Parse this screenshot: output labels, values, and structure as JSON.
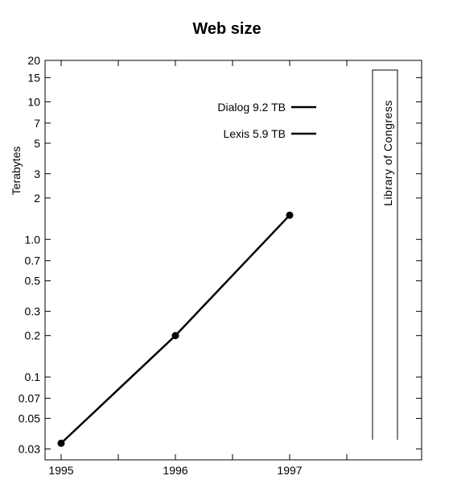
{
  "chart_data": {
    "type": "line",
    "title": "Web size",
    "xlabel": "",
    "ylabel": "Terabytes",
    "yscale": "log",
    "ylim": [
      0.025,
      20
    ],
    "xlim": [
      1995,
      1997.5
    ],
    "x_ticks": [
      1995,
      1996,
      1997
    ],
    "x_tick_labels": [
      "1995",
      "1996",
      "1997"
    ],
    "y_ticks": [
      0.03,
      0.05,
      0.07,
      0.1,
      0.2,
      0.3,
      0.5,
      0.7,
      1.0,
      2,
      3,
      5,
      7,
      10,
      15,
      20
    ],
    "y_tick_labels": [
      "0.03",
      "0.05",
      "0.07",
      "0.1",
      "0.2",
      "0.3",
      "0.5",
      "0.7",
      "1.0",
      "2",
      "3",
      "5",
      "7",
      "10",
      "15",
      "20"
    ],
    "grid": false,
    "series": [
      {
        "x": [
          1995,
          1996,
          1997
        ],
        "values": [
          0.033,
          0.2,
          1.5
        ],
        "color": "#000000"
      }
    ],
    "legend": [
      {
        "label": "Dialog 9.2 TB",
        "value": 9.2
      },
      {
        "label": "Lexis 5.9 TB",
        "value": 5.9
      }
    ],
    "annotations": [
      {
        "label": "Library of Congress",
        "y_range": [
          0.035,
          17
        ]
      }
    ]
  }
}
